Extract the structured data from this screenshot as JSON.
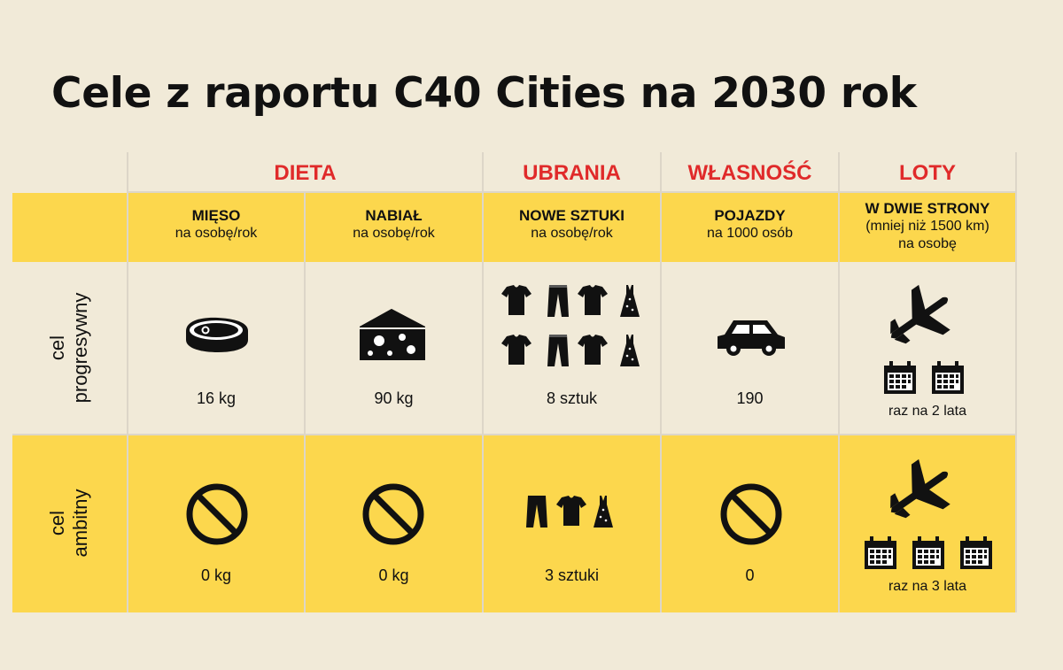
{
  "title": "Cele z raportu C40 Cities na 2030 rok",
  "colors": {
    "accent_red": "#e02a2a",
    "band_yellow": "#fcd74d",
    "background": "#f1ead8"
  },
  "categories": {
    "dieta": "DIETA",
    "ubrania": "UBRANIA",
    "wlasnosc": "WŁASNOŚĆ",
    "loty": "LOTY"
  },
  "columns": [
    {
      "main": "MIĘSO",
      "sub1": "na osobę/rok",
      "sub2": ""
    },
    {
      "main": "NABIAŁ",
      "sub1": "na osobę/rok",
      "sub2": ""
    },
    {
      "main": "NOWE SZTUKI",
      "sub1": "na osobę/rok",
      "sub2": ""
    },
    {
      "main": "POJAZDY",
      "sub1": "na 1000 osób",
      "sub2": ""
    },
    {
      "main": "W DWIE STRONY",
      "sub1": "(mniej niż 1500 km)",
      "sub2": "na osobę"
    }
  ],
  "rows": [
    {
      "label_line1": "cel",
      "label_line2": "progresywny",
      "values": [
        "16 kg",
        "90 kg",
        "8 sztuk",
        "190",
        "raz na 2 lata"
      ],
      "icons": [
        "steak-icon",
        "cheese-icon",
        "clothing-icon",
        "car-icon",
        "airplane-icon"
      ]
    },
    {
      "label_line1": "cel",
      "label_line2": "ambitny",
      "values": [
        "0 kg",
        "0 kg",
        "3 sztuki",
        "0",
        "raz na 3 lata"
      ],
      "icons": [
        "prohibited-icon",
        "prohibited-icon",
        "clothing-icon",
        "prohibited-icon",
        "airplane-icon"
      ]
    }
  ]
}
